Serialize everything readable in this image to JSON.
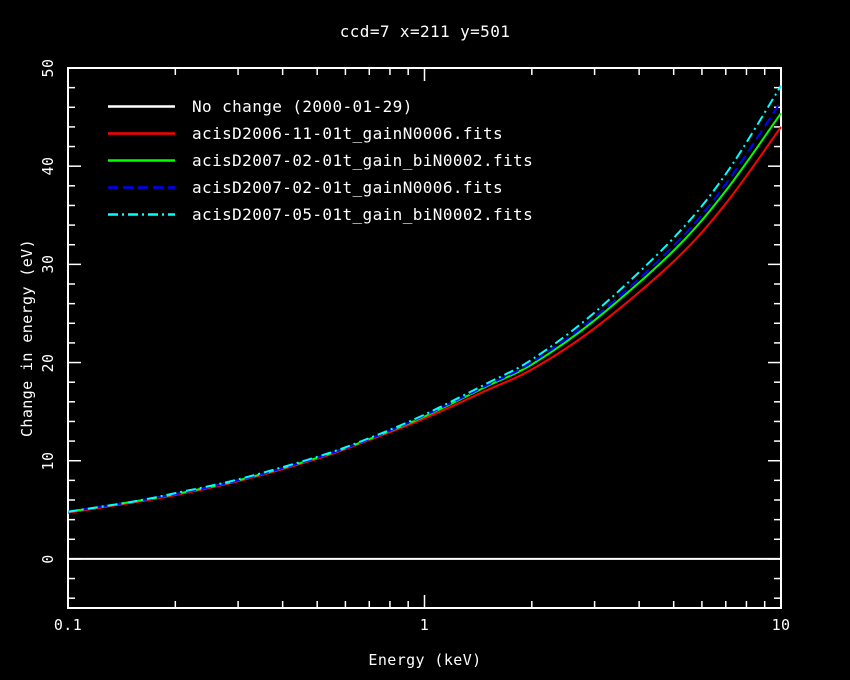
{
  "colors": {
    "background": "#000000",
    "axis": "#ffffff",
    "text": "#ffffff"
  },
  "chart_data": {
    "type": "line",
    "title": "ccd=7 x=211 y=501",
    "xlabel": "Energy (keV)",
    "ylabel": "Change in energy (eV)",
    "xscale": "log",
    "xlim": [
      0.1,
      10
    ],
    "ylim": [
      -5,
      50
    ],
    "grid": false,
    "legend_position": "top-left",
    "x_ticks": [
      {
        "v": 0.1,
        "label": "0.1"
      },
      {
        "v": 1,
        "label": "1"
      },
      {
        "v": 10,
        "label": "10"
      }
    ],
    "y_ticks": [
      {
        "v": 0,
        "label": "0"
      },
      {
        "v": 10,
        "label": "10"
      },
      {
        "v": 20,
        "label": "20"
      },
      {
        "v": 30,
        "label": "30"
      },
      {
        "v": 40,
        "label": "40"
      },
      {
        "v": 50,
        "label": "50"
      }
    ],
    "y_minor_step": 2,
    "x": [
      0.1,
      0.15,
      0.2,
      0.3,
      0.5,
      0.7,
      1.0,
      1.5,
      2.0,
      3.0,
      5.0,
      7.0,
      10.0
    ],
    "series": [
      {
        "name": "No change (2000-01-29)",
        "color": "#ffffff",
        "style": "solid",
        "values": [
          0,
          0,
          0,
          0,
          0,
          0,
          0,
          0,
          0,
          0,
          0,
          0,
          0
        ]
      },
      {
        "name": "acisD2006-11-01t_gainN0006.fits",
        "color": "#ff0000",
        "style": "solid",
        "values": [
          4.7,
          5.7,
          6.5,
          7.9,
          10.2,
          12.1,
          14.3,
          17.2,
          19.3,
          23.5,
          30.3,
          36.2,
          44.0
        ]
      },
      {
        "name": "acisD2007-02-01t_gain_biN0002.fits",
        "color": "#00ff00",
        "style": "solid",
        "values": [
          4.8,
          5.8,
          6.6,
          8.0,
          10.3,
          12.2,
          14.5,
          17.6,
          19.8,
          24.3,
          31.4,
          37.5,
          45.4
        ]
      },
      {
        "name": "acisD2007-02-01t_gainN0006.fits",
        "color": "#0000ff",
        "style": "dashed",
        "values": [
          4.8,
          5.8,
          6.6,
          8.0,
          10.3,
          12.2,
          14.6,
          17.7,
          20.0,
          24.6,
          31.9,
          38.2,
          46.6
        ]
      },
      {
        "name": "acisD2007-05-01t_gain_biN0002.fits",
        "color": "#00ffff",
        "style": "dashdot",
        "values": [
          4.8,
          5.8,
          6.7,
          8.1,
          10.4,
          12.3,
          14.7,
          17.9,
          20.3,
          25.1,
          32.7,
          39.2,
          48.2
        ]
      }
    ]
  }
}
